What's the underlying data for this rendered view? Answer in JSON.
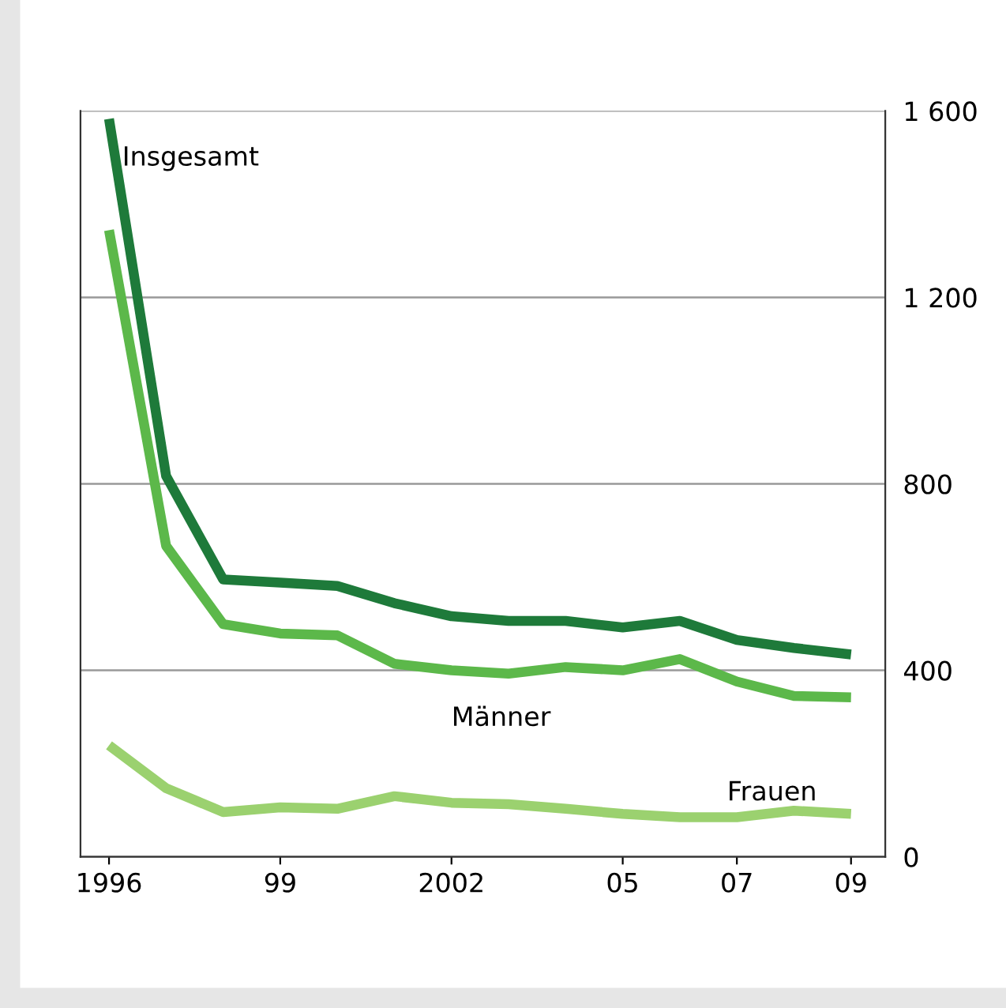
{
  "chart_data": {
    "type": "line",
    "x": [
      1996,
      1997,
      1998,
      1999,
      2000,
      2001,
      2002,
      2003,
      2004,
      2005,
      2006,
      2007,
      2008,
      2009
    ],
    "series": [
      {
        "name": "Insgesamt",
        "color": "#1e7a3a",
        "values": [
          1583,
          817,
          595,
          588,
          581,
          544,
          516,
          506,
          506,
          492,
          506,
          465,
          448,
          434
        ]
      },
      {
        "name": "Männer",
        "color": "#5cb84a",
        "values": [
          1344,
          667,
          499,
          479,
          475,
          414,
          400,
          393,
          407,
          400,
          424,
          376,
          345,
          342
        ]
      },
      {
        "name": "Frauen",
        "color": "#9bd16f",
        "values": [
          239,
          147,
          96,
          106,
          103,
          130,
          116,
          113,
          103,
          92,
          85,
          85,
          99,
          92
        ]
      }
    ],
    "xlim": [
      1995.5,
      2009.6
    ],
    "xticks": [
      1996,
      {
        "value": 1999,
        "label": "99"
      },
      2002,
      {
        "value": 2005,
        "label": "05"
      },
      {
        "value": 2007,
        "label": "07"
      },
      {
        "value": 2009,
        "label": "09"
      }
    ],
    "ylim": [
      0,
      1600
    ],
    "yticks": [
      0,
      400,
      800,
      {
        "value": 1200,
        "label": "1 200"
      },
      {
        "value": 1600,
        "label": "1 600"
      }
    ],
    "grid": "y",
    "legend": false,
    "marker": "none",
    "line_style": "solid"
  }
}
